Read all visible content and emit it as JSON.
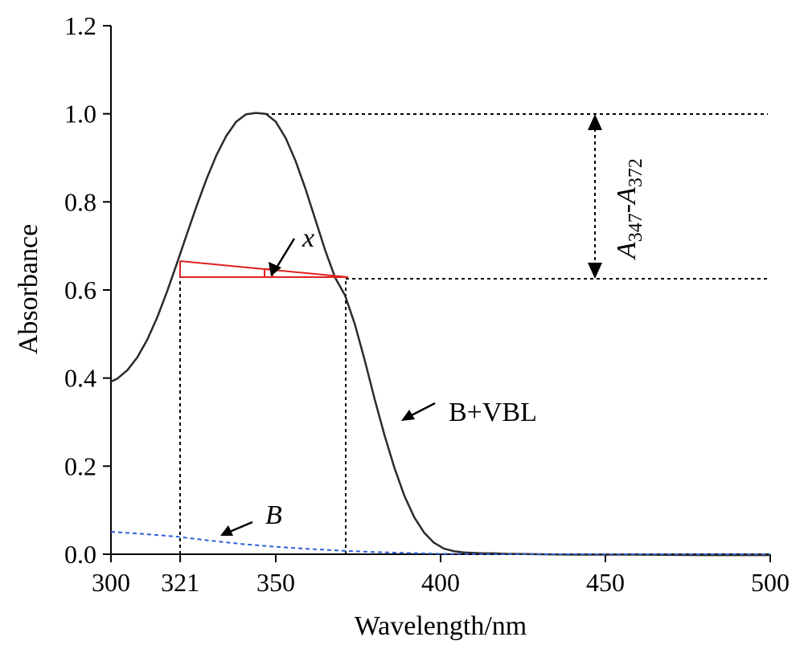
{
  "chart_data": {
    "type": "line",
    "title": "",
    "xlabel": "Wavelength/nm",
    "ylabel": "Absorbance",
    "xlim": [
      300,
      500
    ],
    "ylim": [
      0,
      1.2
    ],
    "x_ticks": [
      {
        "value": 300,
        "label": "300"
      },
      {
        "value": 321,
        "label": "321"
      },
      {
        "value": 350,
        "label": "350"
      },
      {
        "value": 400,
        "label": "400"
      },
      {
        "value": 450,
        "label": "450"
      },
      {
        "value": 500,
        "label": "500"
      }
    ],
    "y_ticks": [
      {
        "value": 0.0,
        "label": "0.0"
      },
      {
        "value": 0.2,
        "label": "0.2"
      },
      {
        "value": 0.4,
        "label": "0.4"
      },
      {
        "value": 0.6,
        "label": "0.6"
      },
      {
        "value": 0.8,
        "label": "0.8"
      },
      {
        "value": 1.0,
        "label": "1.0"
      },
      {
        "value": 1.2,
        "label": "1.2"
      }
    ],
    "series": [
      {
        "name": "B+VBL",
        "color": "#2b2b2b",
        "style": "solid",
        "x": [
          300,
          302,
          305,
          308,
          311,
          314,
          317,
          320,
          323,
          326,
          329,
          332,
          335,
          338,
          341,
          344,
          347,
          350,
          353,
          356,
          359,
          362,
          365,
          368,
          371,
          374,
          377,
          380,
          383,
          386,
          389,
          392,
          395,
          398,
          401,
          404,
          407,
          410,
          413,
          416,
          420,
          430,
          440,
          460,
          480,
          500
        ],
        "y": [
          0.392,
          0.399,
          0.418,
          0.447,
          0.487,
          0.537,
          0.596,
          0.66,
          0.726,
          0.791,
          0.852,
          0.906,
          0.95,
          0.982,
          0.999,
          1.002,
          1.0,
          0.982,
          0.945,
          0.893,
          0.83,
          0.76,
          0.69,
          0.628,
          0.588,
          0.522,
          0.44,
          0.352,
          0.27,
          0.196,
          0.133,
          0.084,
          0.049,
          0.026,
          0.013,
          0.007,
          0.004,
          0.003,
          0.002,
          0.002,
          0.001,
          0.0,
          -0.001,
          -0.001,
          -0.002,
          -0.002
        ]
      },
      {
        "name": "B",
        "color": "#2f5fd8",
        "style": "dashed",
        "x": [
          300,
          310,
          320,
          330,
          340,
          350,
          360,
          370,
          380,
          390,
          400,
          420,
          440,
          460,
          480,
          500
        ],
        "y": [
          0.051,
          0.046,
          0.04,
          0.031,
          0.023,
          0.017,
          0.012,
          0.008,
          0.005,
          0.003,
          0.001,
          0.0,
          0.0,
          0.0,
          0.0,
          0.0
        ]
      }
    ],
    "annotations": {
      "difference_label": {
        "prefix": "A",
        "sub1": "347",
        "dash": "-",
        "mid": "A",
        "sub2": "372"
      },
      "x_label": "x",
      "bvbl_label": "B+VBL",
      "b_label": "B"
    },
    "colors": {
      "construction": "#e02020",
      "axis": "#000000"
    },
    "grid": false,
    "legend": "none"
  }
}
